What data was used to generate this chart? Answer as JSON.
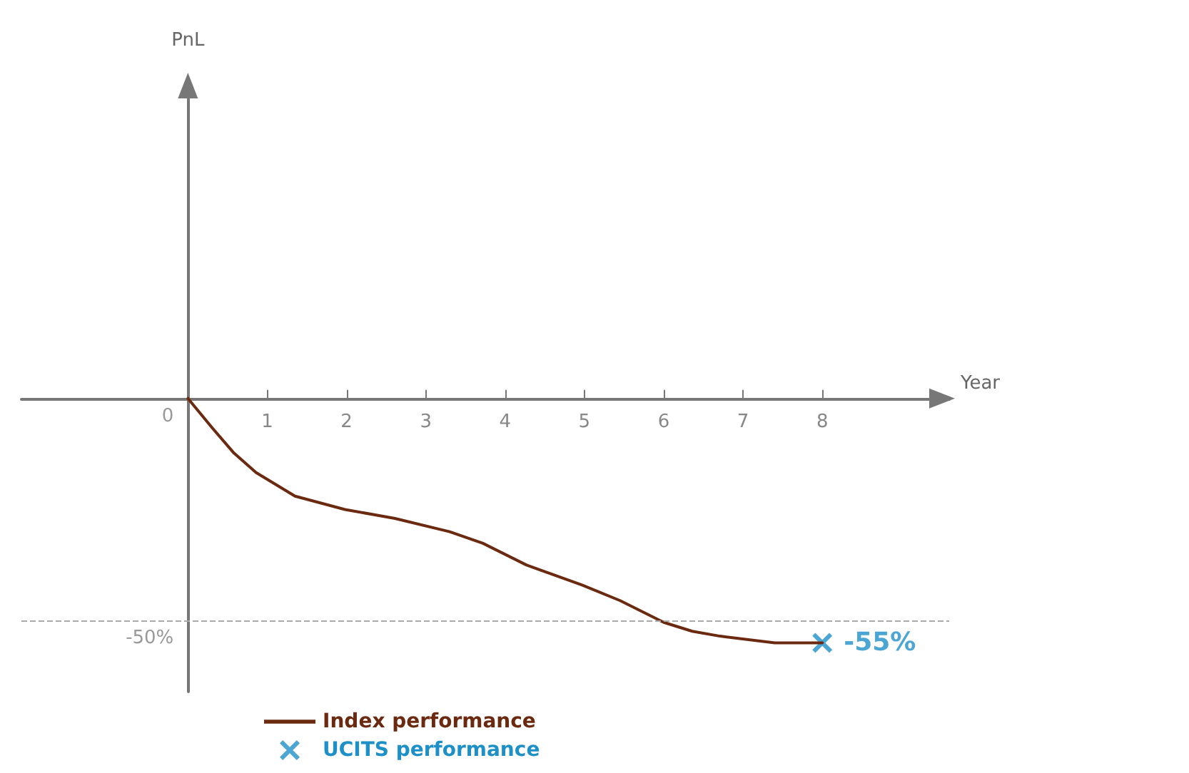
{
  "chart_data": {
    "type": "line",
    "xlabel": "Year",
    "ylabel": "PnL",
    "xlim": [
      -2.1,
      9.6
    ],
    "ylim": [
      -66,
      72
    ],
    "xticks": [
      1,
      2,
      3,
      4,
      5,
      6,
      7,
      8
    ],
    "yticks": [
      0,
      {
        "value": -50,
        "label": "-50%"
      }
    ],
    "grid": false,
    "legend": "bottom",
    "line_style": "solid",
    "ref_lines": [
      {
        "axis": "y",
        "value": -50,
        "color": "#aaaaaa",
        "line_style": "dashed"
      }
    ],
    "series": [
      {
        "name": "Index performance",
        "color": "#6b2a10",
        "marker": "none",
        "x": [
          0,
          0.31,
          0.58,
          0.86,
          1.35,
          1.98,
          2.61,
          3.3,
          3.72,
          4.27,
          4.97,
          5.45,
          6.0,
          6.36,
          6.71,
          7.4,
          8
        ],
        "values": [
          0,
          -6.7,
          -12.3,
          -16.7,
          -22,
          -25,
          -27,
          -30,
          -32.6,
          -37.5,
          -42,
          -45.5,
          -50.4,
          -52.4,
          -53.5,
          -55,
          -55
        ]
      },
      {
        "name": "UCITS performance",
        "type": "scatter",
        "color": "#1e90c8",
        "marker": "cross",
        "x": [
          8
        ],
        "values": [
          -55
        ],
        "value_labels": [
          "-55%"
        ]
      }
    ]
  }
}
